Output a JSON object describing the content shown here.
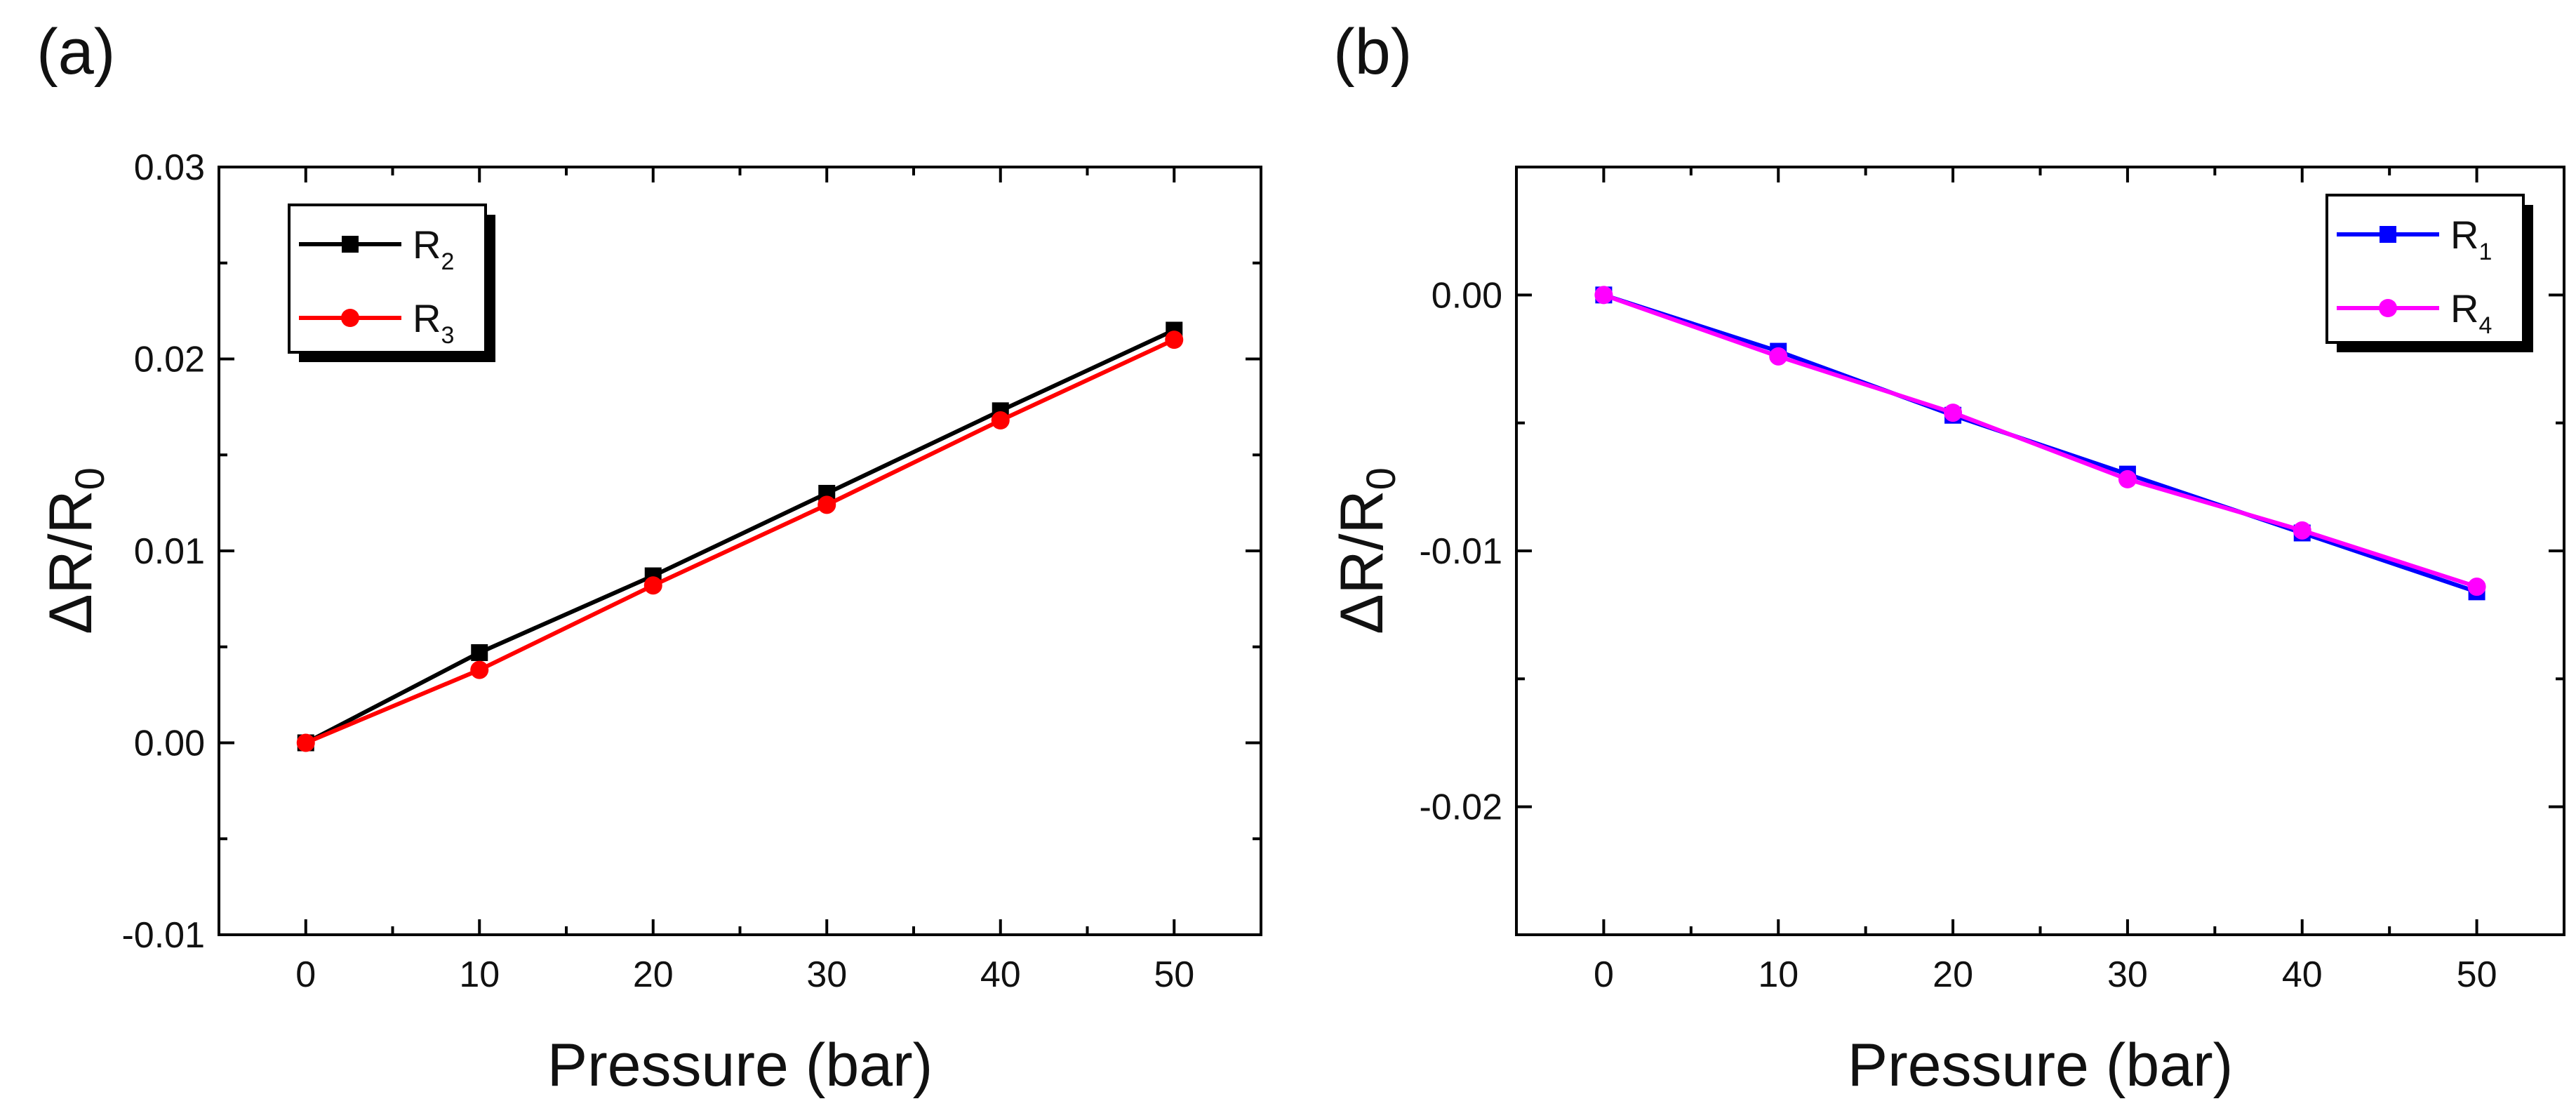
{
  "chart_data": [
    {
      "type": "line",
      "panel_label": "(a)",
      "xlabel": "Pressure (bar)",
      "ylabel": {
        "base": "ΔR/R",
        "sub": "0"
      },
      "xlim": [
        -5,
        55
      ],
      "ylim": [
        -0.01,
        0.03
      ],
      "xticks": [
        0,
        10,
        20,
        30,
        40,
        50
      ],
      "xtick_labels": [
        "0",
        "10",
        "20",
        "30",
        "40",
        "50"
      ],
      "yticks": [
        -0.01,
        0.0,
        0.01,
        0.02,
        0.03
      ],
      "ytick_labels": [
        "-0.01",
        "0.00",
        "0.01",
        "0.02",
        "0.03"
      ],
      "legend_position": "top-left",
      "series": [
        {
          "name": "R",
          "sub": "2",
          "color": "#000000",
          "marker": "square",
          "x": [
            0,
            10,
            20,
            30,
            40,
            50
          ],
          "y": [
            0.0,
            0.0047,
            0.0087,
            0.013,
            0.0173,
            0.0215
          ]
        },
        {
          "name": "R",
          "sub": "3",
          "color": "#ff0000",
          "marker": "circle",
          "x": [
            0,
            10,
            20,
            30,
            40,
            50
          ],
          "y": [
            0.0,
            0.0038,
            0.0082,
            0.0124,
            0.0168,
            0.021
          ]
        }
      ]
    },
    {
      "type": "line",
      "panel_label": "(b)",
      "xlabel": "Pressure (bar)",
      "ylabel": {
        "base": "ΔR/R",
        "sub": "0"
      },
      "xlim": [
        -5,
        55
      ],
      "ylim": [
        -0.025,
        0.005
      ],
      "xticks": [
        0,
        10,
        20,
        30,
        40,
        50
      ],
      "xtick_labels": [
        "0",
        "10",
        "20",
        "30",
        "40",
        "50"
      ],
      "yticks": [
        -0.02,
        -0.01,
        0.0
      ],
      "ytick_labels": [
        "-0.02",
        "-0.01",
        "0.00"
      ],
      "legend_position": "top-right",
      "series": [
        {
          "name": "R",
          "sub": "1",
          "color": "#0000ff",
          "marker": "square",
          "x": [
            0,
            10,
            20,
            30,
            40,
            50
          ],
          "y": [
            0.0,
            -0.0022,
            -0.0047,
            -0.007,
            -0.0093,
            -0.0116
          ]
        },
        {
          "name": "R",
          "sub": "4",
          "color": "#ff00ff",
          "marker": "circle",
          "x": [
            0,
            10,
            20,
            30,
            40,
            50
          ],
          "y": [
            0.0,
            -0.0024,
            -0.0046,
            -0.0072,
            -0.0092,
            -0.0114
          ]
        }
      ]
    }
  ]
}
